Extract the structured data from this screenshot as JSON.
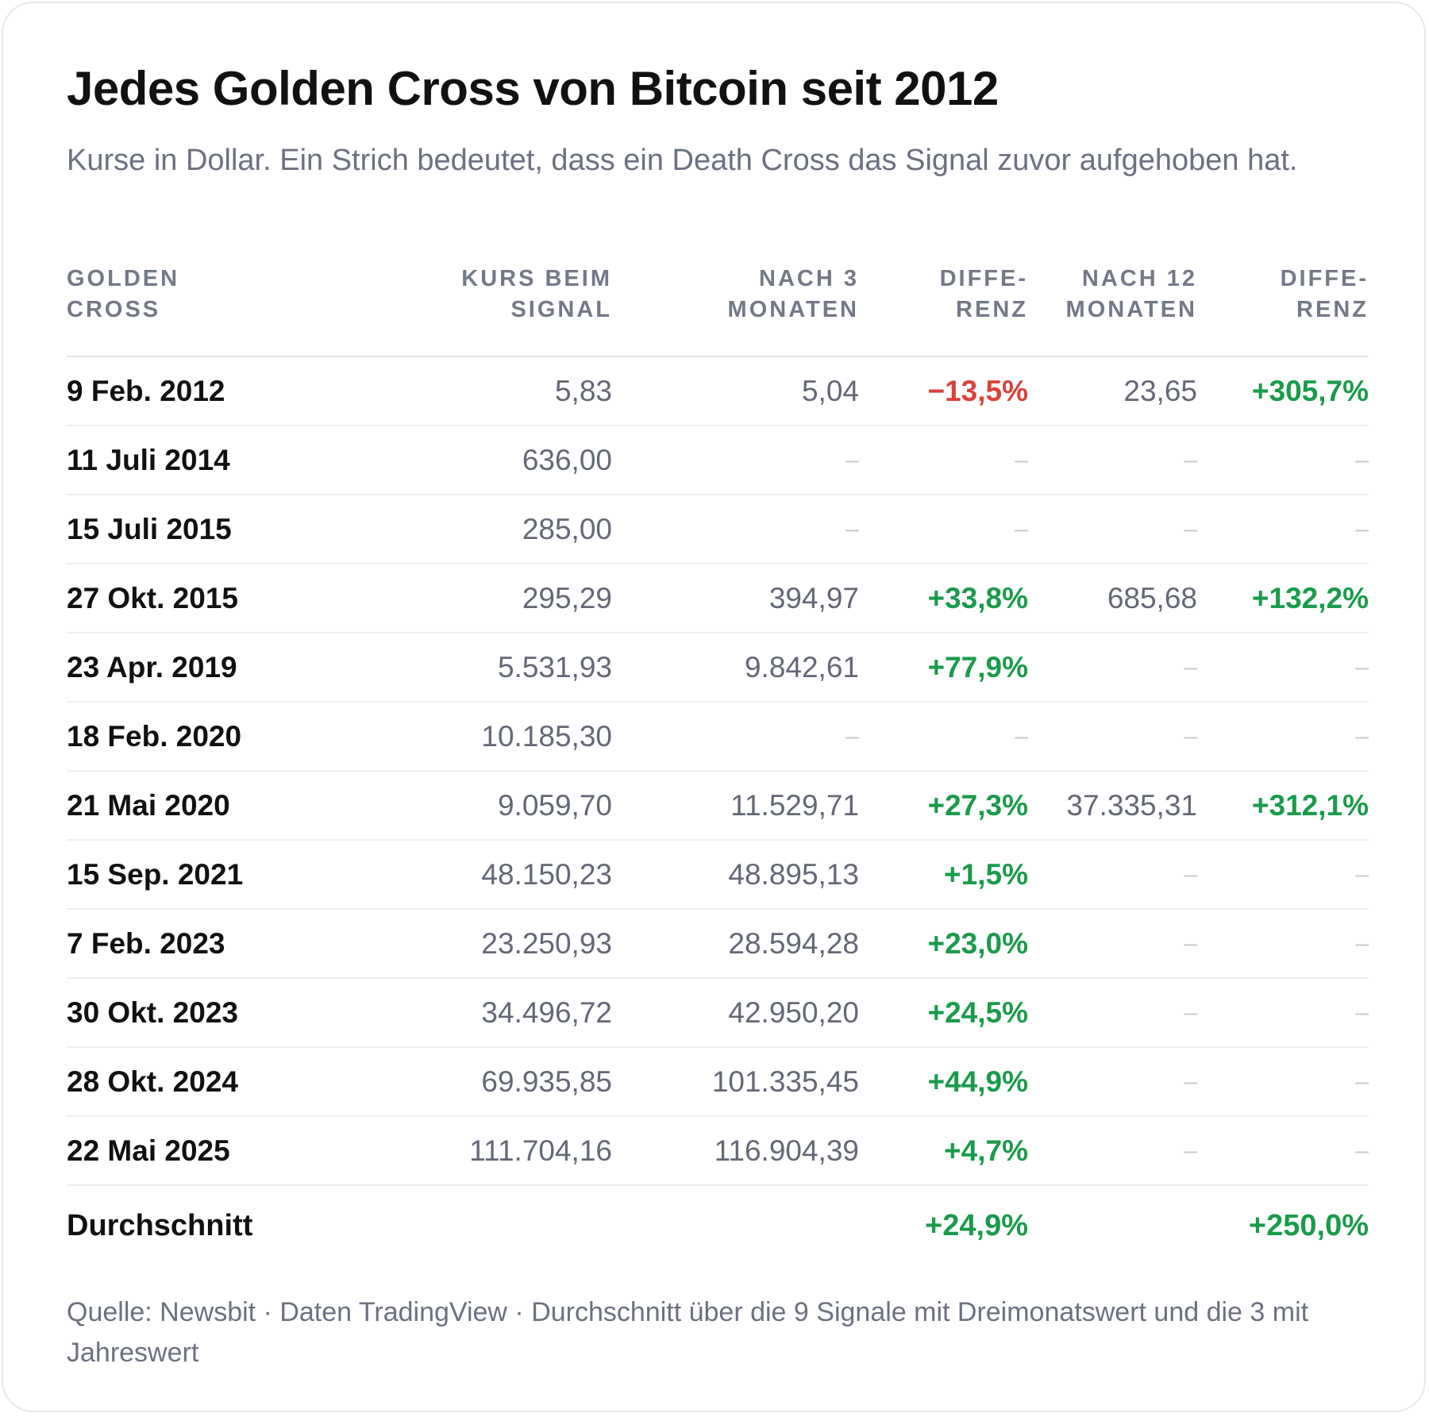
{
  "title": "Jedes Golden Cross von Bitcoin seit 2012",
  "subtitle": "Kurse in Dollar. Ein Strich bedeutet, dass ein Death Cross das Signal zuvor aufgehoben hat.",
  "columns": [
    "GOLDEN\nCROSS",
    "KURS BEIM\nSIGNAL",
    "NACH 3\nMONATEN",
    "DIFFE-\nRENZ",
    "NACH 12\nMONATEN",
    "DIFFE-\nRENZ"
  ],
  "rows": [
    {
      "date": "9 Feb. 2012",
      "price": "5,83",
      "after3": "5,04",
      "diff3": "−13,5%",
      "after12": "23,65",
      "diff12": "+305,7%"
    },
    {
      "date": "11 Juli 2014",
      "price": "636,00",
      "after3": "–",
      "diff3": "–",
      "after12": "–",
      "diff12": "–"
    },
    {
      "date": "15 Juli 2015",
      "price": "285,00",
      "after3": "–",
      "diff3": "–",
      "after12": "–",
      "diff12": "–"
    },
    {
      "date": "27 Okt. 2015",
      "price": "295,29",
      "after3": "394,97",
      "diff3": "+33,8%",
      "after12": "685,68",
      "diff12": "+132,2%"
    },
    {
      "date": "23 Apr. 2019",
      "price": "5.531,93",
      "after3": "9.842,61",
      "diff3": "+77,9%",
      "after12": "–",
      "diff12": "–"
    },
    {
      "date": "18 Feb. 2020",
      "price": "10.185,30",
      "after3": "–",
      "diff3": "–",
      "after12": "–",
      "diff12": "–"
    },
    {
      "date": "21 Mai 2020",
      "price": "9.059,70",
      "after3": "11.529,71",
      "diff3": "+27,3%",
      "after12": "37.335,31",
      "diff12": "+312,1%"
    },
    {
      "date": "15 Sep. 2021",
      "price": "48.150,23",
      "after3": "48.895,13",
      "diff3": "+1,5%",
      "after12": "–",
      "diff12": "–"
    },
    {
      "date": "7 Feb. 2023",
      "price": "23.250,93",
      "after3": "28.594,28",
      "diff3": "+23,0%",
      "after12": "–",
      "diff12": "–"
    },
    {
      "date": "30 Okt. 2023",
      "price": "34.496,72",
      "after3": "42.950,20",
      "diff3": "+24,5%",
      "after12": "–",
      "diff12": "–"
    },
    {
      "date": "28 Okt. 2024",
      "price": "69.935,85",
      "after3": "101.335,45",
      "diff3": "+44,9%",
      "after12": "–",
      "diff12": "–"
    },
    {
      "date": "22 Mai 2025",
      "price": "111.704,16",
      "after3": "116.904,39",
      "diff3": "+4,7%",
      "after12": "–",
      "diff12": "–"
    }
  ],
  "average": {
    "label": "Durchschnitt",
    "diff3": "+24,9%",
    "diff12": "+250,0%"
  },
  "source": "Quelle: Newsbit · Daten TradingView · Durchschnitt über die 9 Signale mit Dreimonatswert und die 3 mit Jahreswert",
  "colors": {
    "positive": "#1a9b4b",
    "negative": "#d9413a",
    "muted": "#6b7180",
    "dash": "#c5c8ce",
    "text": "#111111"
  }
}
